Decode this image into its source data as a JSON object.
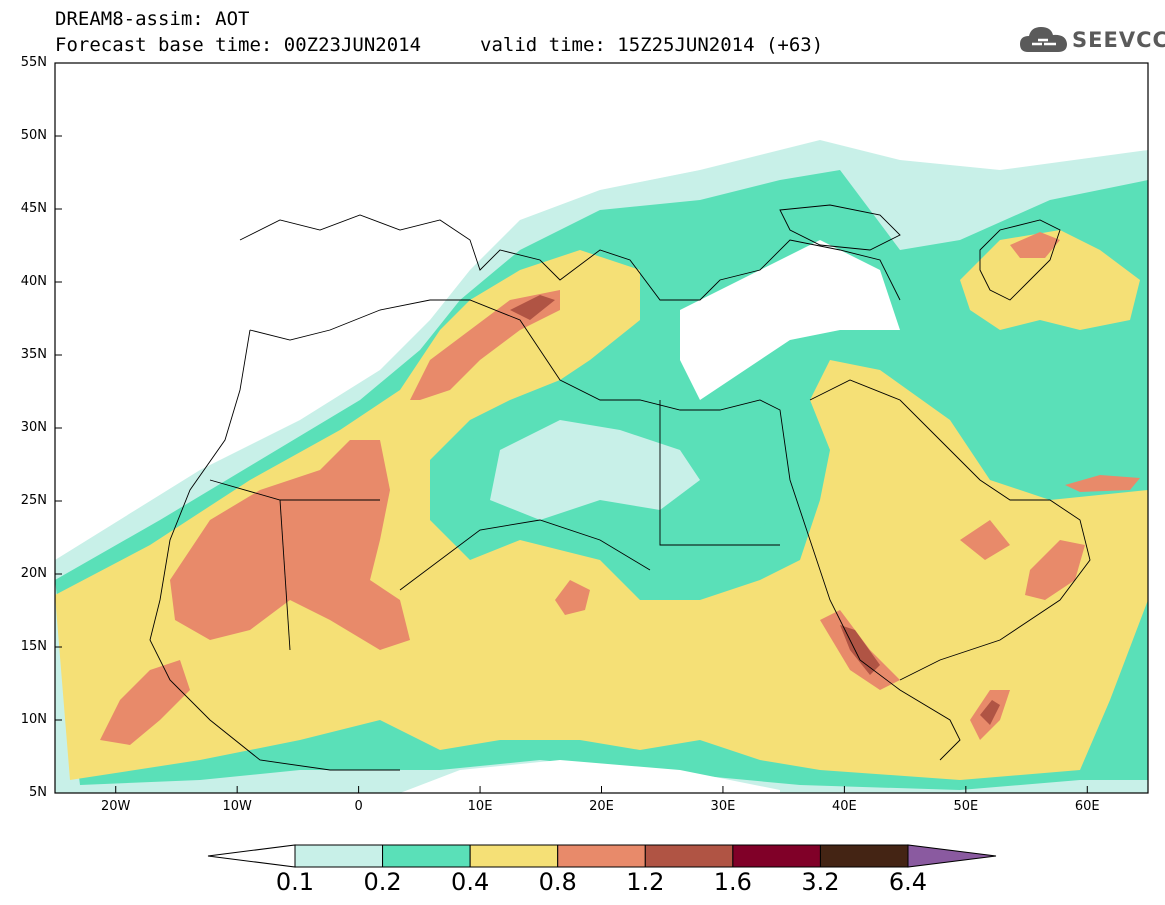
{
  "header": {
    "title": "DREAM8-assim: AOT",
    "base_time": "Forecast base time: 00Z23JUN2014",
    "valid_time": "valid time: 15Z25JUN2014 (+63)",
    "logo_text": "SEEVCCC"
  },
  "icons": {
    "logo": "cloud-logo-icon"
  },
  "axes": {
    "lat_labels": [
      "55N",
      "50N",
      "45N",
      "40N",
      "35N",
      "30N",
      "25N",
      "20N",
      "15N",
      "10N",
      "5N"
    ],
    "lat_values": [
      55,
      50,
      45,
      40,
      35,
      30,
      25,
      20,
      15,
      10,
      5
    ],
    "lon_labels": [
      "20W",
      "10W",
      "0",
      "10E",
      "20E",
      "30E",
      "40E",
      "50E",
      "60E"
    ],
    "lon_values": [
      -20,
      -10,
      0,
      10,
      20,
      30,
      40,
      50,
      60
    ],
    "lon_range": [
      -25,
      65
    ],
    "lat_range": [
      5,
      55
    ]
  },
  "colorbar": {
    "labels": [
      "0.1",
      "0.2",
      "0.4",
      "0.8",
      "1.2",
      "1.6",
      "3.2",
      "6.4"
    ],
    "colors": [
      "#ffffff",
      "#c8f0e8",
      "#5ae0b8",
      "#f5e076",
      "#e88a6a",
      "#b05444",
      "#800028",
      "#442414",
      "#8a5aa0"
    ]
  },
  "colors": {
    "aot_0_1_0_2": "#c8f0e8",
    "aot_0_2_0_4": "#5ae0b8",
    "aot_0_4_0_8": "#f5e076",
    "aot_0_8_1_2": "#e88a6a",
    "aot_1_2_1_6": "#b05444",
    "aot_1_6_3_2": "#800028",
    "aot_3_2_6_4": "#442414"
  }
}
